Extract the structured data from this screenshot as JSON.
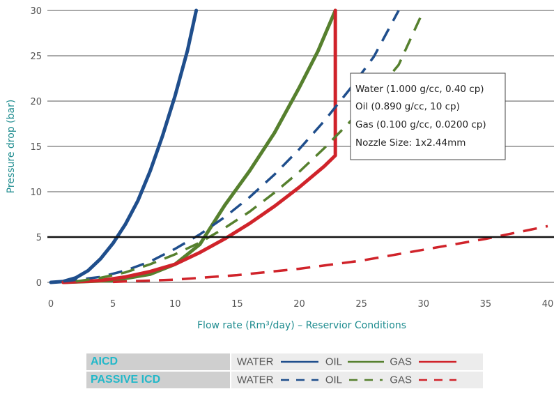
{
  "chart_data": {
    "type": "line",
    "xlabel": "Flow rate (Rm³/day) – Reservior Conditions",
    "ylabel": "Pressure drop (bar)",
    "xlim": [
      0,
      40
    ],
    "ylim": [
      0,
      30
    ],
    "x_ticks": [
      "0",
      "5",
      "10",
      "15",
      "20",
      "25",
      "30",
      "35",
      "40"
    ],
    "y_ticks": [
      "0",
      "5",
      "10",
      "15",
      "20",
      "25",
      "30"
    ],
    "reference_line_y": 5,
    "colors": {
      "water": "#1f4e8c",
      "oil": "#56802e",
      "gas": "#d0232a",
      "reference": "#111111",
      "grid": "#555555"
    },
    "series": [
      {
        "name": "AICD WATER",
        "kind": "water",
        "style": "solid",
        "x": [
          0,
          1,
          2,
          3,
          4,
          5,
          6,
          7,
          8,
          9,
          10,
          11,
          11.7
        ],
        "y": [
          0,
          0.1,
          0.5,
          1.3,
          2.6,
          4.3,
          6.4,
          9.0,
          12.3,
          16.2,
          20.6,
          25.6,
          30
        ]
      },
      {
        "name": "AICD OIL",
        "kind": "oil",
        "style": "solid",
        "x": [
          1,
          5,
          8,
          10,
          12,
          14,
          16,
          18,
          20,
          21.5,
          22.9
        ],
        "y": [
          0,
          0.2,
          0.9,
          2.0,
          4.2,
          8.5,
          12.3,
          16.5,
          21.5,
          25.5,
          30
        ]
      },
      {
        "name": "AICD GAS",
        "kind": "gas",
        "style": "solid",
        "x": [
          1,
          4,
          6,
          8,
          10,
          12,
          14,
          16,
          18,
          20,
          22,
          22.9,
          22.9,
          22.9
        ],
        "y": [
          0,
          0.2,
          0.6,
          1.2,
          2.0,
          3.3,
          4.8,
          6.5,
          8.4,
          10.5,
          12.8,
          14.0,
          20,
          30
        ]
      },
      {
        "name": "PASSIVE ICD WATER",
        "kind": "water",
        "style": "dashed",
        "x": [
          1,
          4,
          6,
          8,
          10,
          12,
          14,
          16,
          18,
          20,
          22,
          24,
          26,
          28
        ],
        "y": [
          0.1,
          0.6,
          1.3,
          2.3,
          3.7,
          5.3,
          7.2,
          9.4,
          11.9,
          14.7,
          17.8,
          21.2,
          24.9,
          30
        ]
      },
      {
        "name": "PASSIVE ICD OIL",
        "kind": "oil",
        "style": "dashed",
        "x": [
          2,
          4,
          6,
          8,
          10,
          12,
          14,
          16,
          18,
          20,
          22,
          24,
          26,
          28,
          30
        ],
        "y": [
          0.1,
          0.5,
          1.1,
          2.0,
          3.1,
          4.4,
          6.0,
          7.8,
          9.9,
          12.2,
          14.8,
          17.6,
          20.7,
          24.0,
          30
        ]
      },
      {
        "name": "PASSIVE ICD GAS",
        "kind": "gas",
        "style": "dashed",
        "x": [
          5,
          10,
          15,
          20,
          25,
          30,
          35,
          40
        ],
        "y": [
          0.05,
          0.3,
          0.8,
          1.5,
          2.4,
          3.6,
          4.8,
          6.2
        ]
      }
    ],
    "annotation": [
      "Water (1.000 g/cc, 0.40 cp)",
      "Oil (0.890 g/cc, 10 cp)",
      "Gas (0.100 g/cc, 0.0200 cp)",
      "Nozzle Size: 1x2.44mm"
    ],
    "legend": {
      "placement": "bottom",
      "rows": [
        {
          "label": "AICD",
          "style": "solid",
          "water": "WATER",
          "oil": "OIL",
          "gas": "GAS"
        },
        {
          "label": "PASSIVE ICD",
          "style": "dashed",
          "water": "WATER",
          "oil": "OIL",
          "gas": "GAS"
        }
      ]
    }
  }
}
